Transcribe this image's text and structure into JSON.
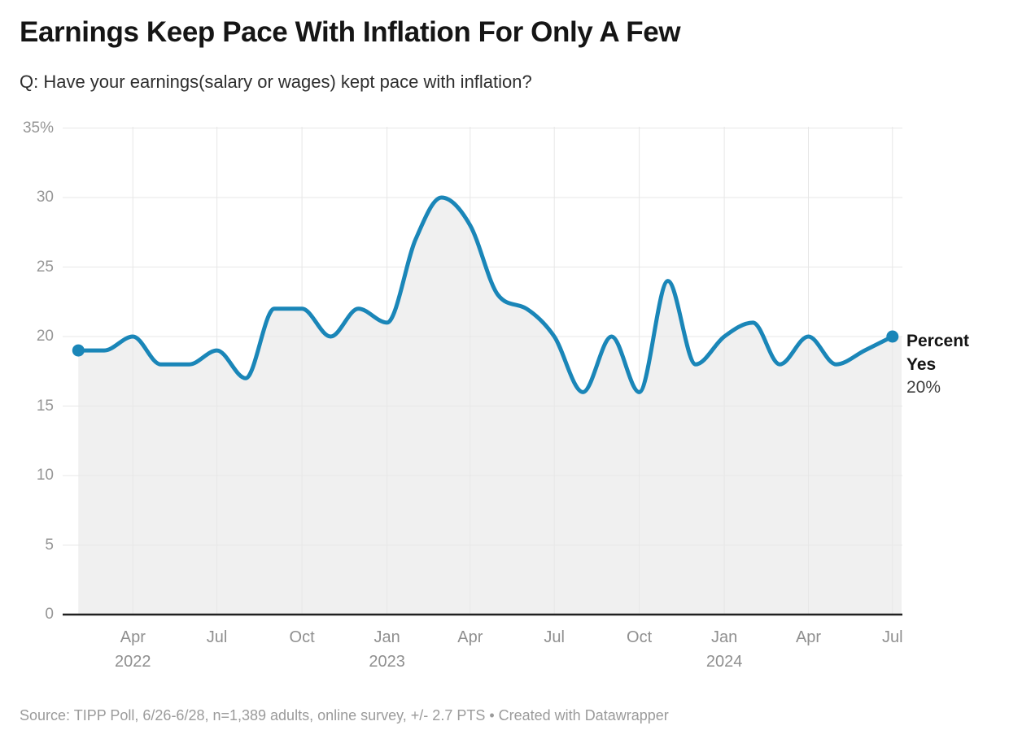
{
  "header": {
    "title": "Earnings Keep Pace With Inflation For Only A Few",
    "subtitle": "Q: Have your earnings(salary or wages) kept pace with inflation?"
  },
  "right_annotation": {
    "label_line1": "Percent",
    "label_line2": "Yes",
    "value": "20%"
  },
  "footer": {
    "source": "Source: TIPP Poll, 6/26-6/28, n=1,389 adults, online survey, +/- 2.7 PTS • Created with Datawrapper"
  },
  "colors": {
    "line": "#1a86b8",
    "area_fill": "#f0f0f0",
    "grid": "#e7e7e7",
    "baseline": "#202020",
    "axis_label": "#969696",
    "annotation_bold": "#141414",
    "annotation_value": "#3f3f3f",
    "footer_text": "#9b9b9b"
  },
  "chart_data": {
    "type": "line",
    "title": "Earnings Keep Pace With Inflation For Only A Few",
    "subtitle": "Q: Have your earnings(salary or wages) kept pace with inflation?",
    "series_name": "Percent Yes",
    "unit": "%",
    "interpolation": "monotone",
    "grid": true,
    "end_markers": true,
    "last_value": 20,
    "last_value_label": "20%",
    "ylim": [
      0,
      35
    ],
    "y_ticks": [
      0,
      5,
      10,
      15,
      20,
      25,
      30,
      35
    ],
    "y_tick_labels": [
      "0",
      "5",
      "10",
      "15",
      "20",
      "25",
      "30",
      "35%"
    ],
    "x": [
      "2022-02",
      "2022-03",
      "2022-04",
      "2022-05",
      "2022-06",
      "2022-07",
      "2022-08",
      "2022-09",
      "2022-10",
      "2022-11",
      "2022-12",
      "2023-01",
      "2023-02",
      "2023-03",
      "2023-04",
      "2023-05",
      "2023-06",
      "2023-07",
      "2023-08",
      "2023-09",
      "2023-10",
      "2023-11",
      "2023-12",
      "2024-01",
      "2024-02",
      "2024-03",
      "2024-04",
      "2024-05",
      "2024-06",
      "2024-07"
    ],
    "values": [
      19,
      19,
      20,
      18,
      18,
      19,
      17,
      22,
      22,
      20,
      22,
      21,
      27,
      30,
      28,
      23,
      22,
      20,
      16,
      20,
      16,
      24,
      18,
      20,
      21,
      18,
      20,
      18,
      19,
      20
    ],
    "x_ticks": [
      {
        "date": "2022-04",
        "label": "Apr",
        "year_label": "2022"
      },
      {
        "date": "2022-07",
        "label": "Jul"
      },
      {
        "date": "2022-10",
        "label": "Oct"
      },
      {
        "date": "2023-01",
        "label": "Jan",
        "year_label": "2023"
      },
      {
        "date": "2023-04",
        "label": "Apr"
      },
      {
        "date": "2023-07",
        "label": "Jul"
      },
      {
        "date": "2023-10",
        "label": "Oct"
      },
      {
        "date": "2024-01",
        "label": "Jan",
        "year_label": "2024"
      },
      {
        "date": "2024-04",
        "label": "Apr"
      },
      {
        "date": "2024-07",
        "label": "Jul"
      }
    ]
  }
}
